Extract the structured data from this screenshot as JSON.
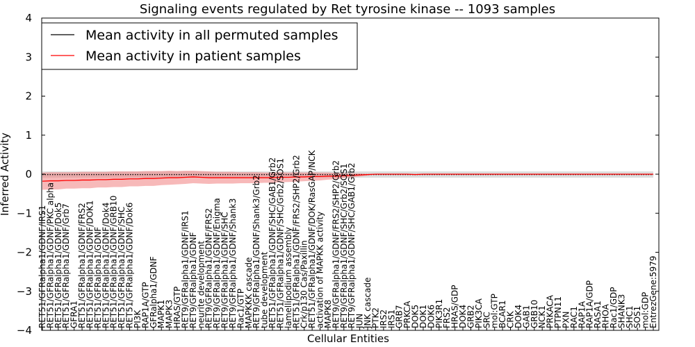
{
  "chart_data": {
    "type": "line",
    "title": "Signaling events regulated by Ret tyrosine kinase -- 1093 samples",
    "xlabel": "Cellular Entities",
    "ylabel": "Inferred Activity",
    "ylim": [
      -4,
      4
    ],
    "yticks": [
      -4,
      -3,
      -2,
      -1,
      0,
      1,
      2,
      3,
      4
    ],
    "grid": false,
    "legend_position": "top-left",
    "categories": [
      "RET51/GFRalpha1/GDNF/IRS1",
      "RET51/GFRalpha1/GDNF/PKC alpha",
      "RET51/GFRalpha1/GDNF/Dok5",
      "RET51/GFRalpha1/GDNF/Grb7",
      "GFRA1",
      "RET51/GFRalpha1/GDNF/FRS2",
      "RET51/GFRalpha1/GDNF/DOK1",
      "RET51/GFRalpha1/GDNF",
      "RET51/GFRalpha1/GDNF/Dok4",
      "RET51/GFRalpha1/GDNF/GRB10",
      "RET51/GFRalpha1/GDNF/SHC",
      "RET51/GFRalpha1/GDNF/Dok6",
      "PI3K",
      "RAP1A/GTP",
      "GFRalpha1/GDNF",
      "MAPK1",
      "MAPK3",
      "HRAS/GTP",
      "RET9/GFRalpha1/GDNF/IRS1",
      "RET9/GFRalpha1/GDNF",
      "neurite development",
      "RET9/GFRalpha1/GDNF/FRS2",
      "RET9/GFRalpha1/GDNF/Enigma",
      "RET9/GFRalpha1/GDNF/SHC",
      "RET9/GFRalpha1/GDNF/Shank3",
      "Rac1/GTP",
      "MAPKKK cascade",
      "RET9/GFRalpha1/GDNF/Shank3/Grb2",
      "tube development",
      "RET51/GFRalpha1/GDNF/SHC/GAB1/Grb2",
      "RET51/GFRalpha1/GDNF/SHC/Grb2/SOS1",
      "lamellipodium assembly",
      "RET51/GFRalpha1/GDNF/FRS2/SHP2/Grb2",
      "Crk/p130 Cas/Paxillin",
      "RET51/GFRalpha1/GDNF/DOK/RasGAP/NCK",
      "activation of MAPKK activity",
      "MAPK8",
      "RET9/GFRalpha1/GDNF/FRS2/SHP2/Grb2",
      "RET9/GFRalpha1/GDNF/SHC/Grb2/SOS1",
      "RET9/GFRalpha1/GDNF/SHC/GAB1/Grb2",
      "JUN",
      "JNK cascade",
      "PTK2",
      "IRS2",
      "IRS1",
      "GRB7",
      "PRKCA",
      "DOK5",
      "DOK1",
      "DOK6",
      "PIK3R1",
      "FRS2",
      "HRAS/GDP",
      "DOK4",
      "GRB2",
      "PIK3CA",
      "SRC",
      "mol:GTP",
      "BCAR1",
      "CRK",
      "DOK4",
      "GAB1",
      "GRB10",
      "NCK1",
      "PRKACA",
      "PTPN11",
      "PXN",
      "RAC1",
      "RAP1A",
      "RAP1A/GDP",
      "RASA1",
      "RHOA",
      "Rac1/GDP",
      "SHANK3",
      "SHC1",
      "SOS1",
      "mol:GDP",
      "EntrezGene:5979"
    ],
    "series": [
      {
        "name": "Mean activity in all permuted samples",
        "color": "#000000",
        "values": [
          -0.01,
          -0.01,
          -0.01,
          -0.01,
          -0.01,
          -0.01,
          -0.01,
          -0.01,
          -0.01,
          -0.01,
          -0.01,
          -0.01,
          -0.01,
          -0.01,
          -0.01,
          -0.01,
          -0.01,
          -0.01,
          -0.01,
          -0.01,
          -0.01,
          -0.01,
          -0.01,
          -0.01,
          -0.01,
          -0.01,
          -0.01,
          -0.01,
          -0.01,
          -0.01,
          -0.01,
          -0.01,
          -0.01,
          -0.01,
          -0.01,
          -0.01,
          -0.01,
          -0.01,
          -0.01,
          -0.01,
          -0.01,
          -0.01,
          -0.01,
          -0.01,
          -0.01,
          -0.01,
          -0.01,
          -0.01,
          -0.01,
          -0.01,
          -0.01,
          -0.01,
          -0.01,
          -0.01,
          -0.01,
          -0.01,
          -0.01,
          -0.01,
          -0.01,
          -0.01,
          -0.01,
          -0.01,
          -0.01,
          -0.01,
          -0.01,
          -0.01,
          -0.01,
          -0.01,
          -0.01,
          -0.01,
          -0.01,
          -0.01,
          -0.01,
          -0.01,
          -0.01,
          -0.01,
          -0.01,
          -0.01
        ],
        "band": 0.08,
        "band_color": "#bbbbbb"
      },
      {
        "name": "Mean activity in patient samples",
        "color": "#ff0000",
        "values": [
          -0.18,
          -0.17,
          -0.17,
          -0.16,
          -0.16,
          -0.15,
          -0.15,
          -0.14,
          -0.14,
          -0.13,
          -0.13,
          -0.12,
          -0.12,
          -0.11,
          -0.11,
          -0.1,
          -0.09,
          -0.09,
          -0.08,
          -0.07,
          -0.08,
          -0.09,
          -0.09,
          -0.09,
          -0.09,
          -0.09,
          -0.09,
          -0.09,
          -0.09,
          -0.09,
          -0.08,
          -0.08,
          -0.07,
          -0.07,
          -0.06,
          -0.06,
          -0.05,
          -0.05,
          -0.04,
          -0.03,
          -0.02,
          -0.01,
          0.0,
          0.0,
          0.0,
          0.0,
          0.0,
          -0.01,
          0.0,
          0.0,
          0.0,
          0.0,
          0.0,
          0.0,
          0.0,
          0.0,
          0.0,
          0.0,
          0.0,
          0.0,
          0.0,
          0.0,
          0.0,
          0.0,
          0.0,
          0.0,
          0.0,
          0.0,
          0.0,
          0.0,
          0.0,
          0.0,
          0.0,
          0.0,
          0.0,
          0.0,
          0.0,
          0.0
        ],
        "band": [
          0.22,
          0.22,
          0.22,
          0.21,
          0.21,
          0.21,
          0.21,
          0.2,
          0.2,
          0.2,
          0.2,
          0.19,
          0.19,
          0.19,
          0.19,
          0.18,
          0.18,
          0.17,
          0.17,
          0.16,
          0.16,
          0.16,
          0.15,
          0.15,
          0.15,
          0.14,
          0.14,
          0.14,
          0.13,
          0.13,
          0.13,
          0.12,
          0.12,
          0.11,
          0.11,
          0.1,
          0.09,
          0.08,
          0.06,
          0.05,
          0.04,
          0.02,
          0.0,
          0.0,
          0.0,
          0.0,
          0.0,
          0.0,
          0.0,
          0.0,
          0.0,
          0.0,
          0.0,
          0.0,
          0.0,
          0.0,
          0.0,
          0.0,
          0.0,
          0.0,
          0.0,
          0.0,
          0.0,
          0.0,
          0.0,
          0.0,
          0.0,
          0.0,
          0.0,
          0.0,
          0.0,
          0.0,
          0.0,
          0.0,
          0.0,
          0.0,
          0.0,
          0.0
        ],
        "band_color": "#f08080"
      }
    ]
  }
}
